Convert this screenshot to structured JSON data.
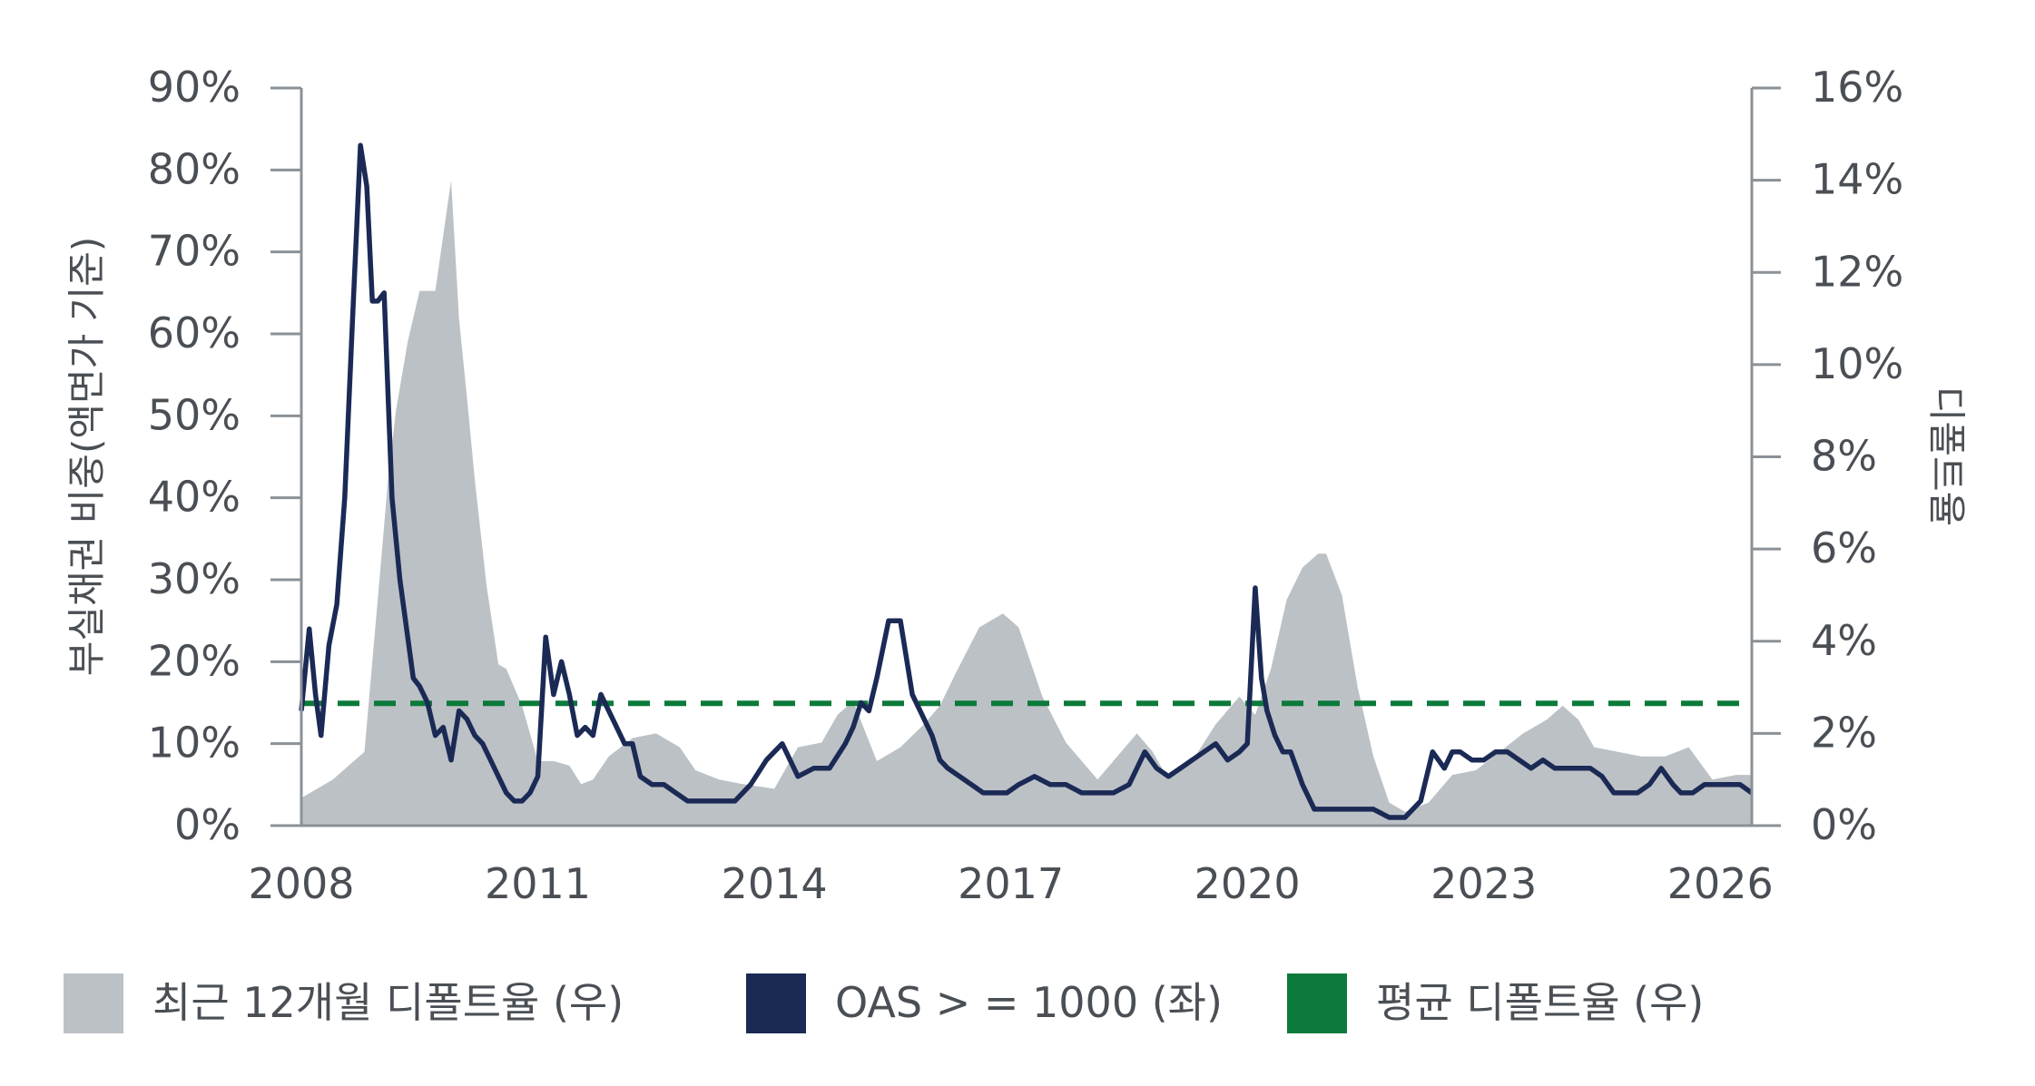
{
  "chart_data": {
    "type": "line",
    "left_axis": {
      "label": "부실채권 비중(액면가 기준)",
      "ticks": [
        "0%",
        "10%",
        "20%",
        "30%",
        "40%",
        "50%",
        "60%",
        "70%",
        "80%",
        "90%"
      ],
      "range": [
        0,
        90
      ]
    },
    "right_axis": {
      "label": "디폴트율",
      "ticks": [
        "0%",
        "2%",
        "4%",
        "6%",
        "8%",
        "10%",
        "12%",
        "14%",
        "16%"
      ],
      "range": [
        0,
        16
      ]
    },
    "x_axis": {
      "ticks": [
        "2008",
        "2011",
        "2014",
        "2017",
        "2020",
        "2023",
        "2026"
      ],
      "range": [
        2008,
        2026.4
      ]
    },
    "grid": false,
    "legend_position": "bottom",
    "legend": [
      {
        "label": "최근 12개월 디폴트율 (우)",
        "color": "#bcc1c6"
      },
      {
        "label": "OAS > = 1000 (좌)",
        "color": "#1b2a55"
      },
      {
        "label": "평균 디폴트율 (우)",
        "color": "#0b7a3a"
      }
    ],
    "series": [
      {
        "name": "최근 12개월 디폴트율 (우)",
        "axis": "right",
        "style": "area",
        "color": "#bcc1c6",
        "x": [
          2008.0,
          2008.2,
          2008.4,
          2008.6,
          2008.8,
          2009.0,
          2009.1,
          2009.2,
          2009.35,
          2009.5,
          2009.7,
          2009.9,
          2010.0,
          2010.1,
          2010.2,
          2010.35,
          2010.5,
          2010.6,
          2010.8,
          2011.0,
          2011.2,
          2011.4,
          2011.55,
          2011.7,
          2011.9,
          2012.2,
          2012.5,
          2012.8,
          2013.0,
          2013.3,
          2013.6,
          2014.0,
          2014.3,
          2014.6,
          2014.8,
          2015.0,
          2015.3,
          2015.6,
          2015.9,
          2016.1,
          2016.3,
          2016.6,
          2016.9,
          2017.1,
          2017.4,
          2017.7,
          2017.9,
          2018.1,
          2018.3,
          2018.6,
          2018.8,
          2019.0,
          2019.3,
          2019.6,
          2019.9,
          2020.1,
          2020.3,
          2020.5,
          2020.7,
          2020.9,
          2021.0,
          2021.2,
          2021.4,
          2021.6,
          2021.8,
          2022.0,
          2022.3,
          2022.6,
          2022.9,
          2023.2,
          2023.5,
          2023.8,
          2024.0,
          2024.2,
          2024.4,
          2024.7,
          2025.0,
          2025.3,
          2025.6,
          2025.9,
          2026.2,
          2026.4
        ],
        "values": [
          0.6,
          0.8,
          1.0,
          1.3,
          1.6,
          5.5,
          7.5,
          9.0,
          10.5,
          11.6,
          11.6,
          14.0,
          11.0,
          9.3,
          7.5,
          5.2,
          3.5,
          3.4,
          2.6,
          1.4,
          1.4,
          1.3,
          0.9,
          1.0,
          1.5,
          1.9,
          2.0,
          1.7,
          1.2,
          1.0,
          0.9,
          0.8,
          1.7,
          1.8,
          2.4,
          2.7,
          1.4,
          1.7,
          2.2,
          2.6,
          3.3,
          4.3,
          4.6,
          4.3,
          2.8,
          1.8,
          1.4,
          1.0,
          1.4,
          2.0,
          1.6,
          1.0,
          1.4,
          2.2,
          2.8,
          2.4,
          3.4,
          4.9,
          5.6,
          5.9,
          5.9,
          5.0,
          3.0,
          1.5,
          0.5,
          0.3,
          0.5,
          1.1,
          1.2,
          1.6,
          2.0,
          2.3,
          2.6,
          2.3,
          1.7,
          1.6,
          1.5,
          1.5,
          1.7,
          1.0,
          1.1,
          1.1
        ]
      },
      {
        "name": "OAS > = 1000 (좌)",
        "axis": "left",
        "style": "line",
        "color": "#1b2a55",
        "x": [
          2008.0,
          2008.1,
          2008.18,
          2008.25,
          2008.35,
          2008.45,
          2008.55,
          2008.65,
          2008.75,
          2008.83,
          2008.9,
          2008.97,
          2009.05,
          2009.15,
          2009.25,
          2009.35,
          2009.42,
          2009.5,
          2009.6,
          2009.7,
          2009.8,
          2009.9,
          2010.0,
          2010.1,
          2010.2,
          2010.3,
          2010.4,
          2010.5,
          2010.6,
          2010.7,
          2010.8,
          2010.9,
          2011.0,
          2011.1,
          2011.2,
          2011.3,
          2011.4,
          2011.5,
          2011.6,
          2011.7,
          2011.8,
          2011.9,
          2012.0,
          2012.1,
          2012.2,
          2012.3,
          2012.45,
          2012.6,
          2012.75,
          2012.9,
          2013.1,
          2013.3,
          2013.5,
          2013.7,
          2013.9,
          2014.1,
          2014.3,
          2014.5,
          2014.7,
          2014.9,
          2015.0,
          2015.1,
          2015.2,
          2015.3,
          2015.45,
          2015.6,
          2015.75,
          2015.9,
          2016.0,
          2016.1,
          2016.2,
          2016.35,
          2016.5,
          2016.65,
          2016.8,
          2016.95,
          2017.1,
          2017.3,
          2017.5,
          2017.7,
          2017.9,
          2018.1,
          2018.3,
          2018.5,
          2018.7,
          2018.85,
          2019.0,
          2019.15,
          2019.3,
          2019.45,
          2019.6,
          2019.75,
          2019.9,
          2020.0,
          2020.1,
          2020.18,
          2020.25,
          2020.35,
          2020.45,
          2020.55,
          2020.7,
          2020.85,
          2021.0,
          2021.2,
          2021.4,
          2021.6,
          2021.8,
          2022.0,
          2022.2,
          2022.35,
          2022.5,
          2022.6,
          2022.7,
          2022.85,
          2023.0,
          2023.15,
          2023.3,
          2023.45,
          2023.6,
          2023.75,
          2023.9,
          2024.05,
          2024.2,
          2024.35,
          2024.5,
          2024.65,
          2024.8,
          2024.95,
          2025.1,
          2025.25,
          2025.4,
          2025.5,
          2025.65,
          2025.8,
          2025.95,
          2026.1,
          2026.25,
          2026.4
        ],
        "values": [
          14,
          24,
          16,
          11,
          22,
          27,
          40,
          62,
          83,
          78,
          64,
          64,
          65,
          40,
          30,
          23,
          18,
          17,
          15,
          11,
          12,
          8,
          14,
          13,
          11,
          10,
          8,
          6,
          4,
          3,
          3,
          4,
          6,
          23,
          16,
          20,
          16,
          11,
          12,
          11,
          16,
          14,
          12,
          10,
          10,
          6,
          5,
          5,
          4,
          3,
          3,
          3,
          3,
          5,
          8,
          10,
          6,
          7,
          7,
          10,
          12,
          15,
          14,
          18,
          25,
          25,
          16,
          13,
          11,
          8,
          7,
          6,
          5,
          4,
          4,
          4,
          5,
          6,
          5,
          5,
          4,
          4,
          4,
          5,
          9,
          7,
          6,
          7,
          8,
          9,
          10,
          8,
          9,
          10,
          29,
          18,
          14,
          11,
          9,
          9,
          5,
          2,
          2,
          2,
          2,
          2,
          1,
          1,
          3,
          9,
          7,
          9,
          9,
          8,
          8,
          9,
          9,
          8,
          7,
          8,
          7,
          7,
          7,
          7,
          6,
          4,
          4,
          4,
          5,
          7,
          5,
          4,
          4,
          5,
          5,
          5,
          5,
          4
        ]
      },
      {
        "name": "평균 디폴트율 (우)",
        "axis": "right",
        "style": "dashed",
        "color": "#0b7a3a",
        "x": [
          2008.0,
          2026.4
        ],
        "values": [
          2.65,
          2.65
        ]
      }
    ]
  }
}
